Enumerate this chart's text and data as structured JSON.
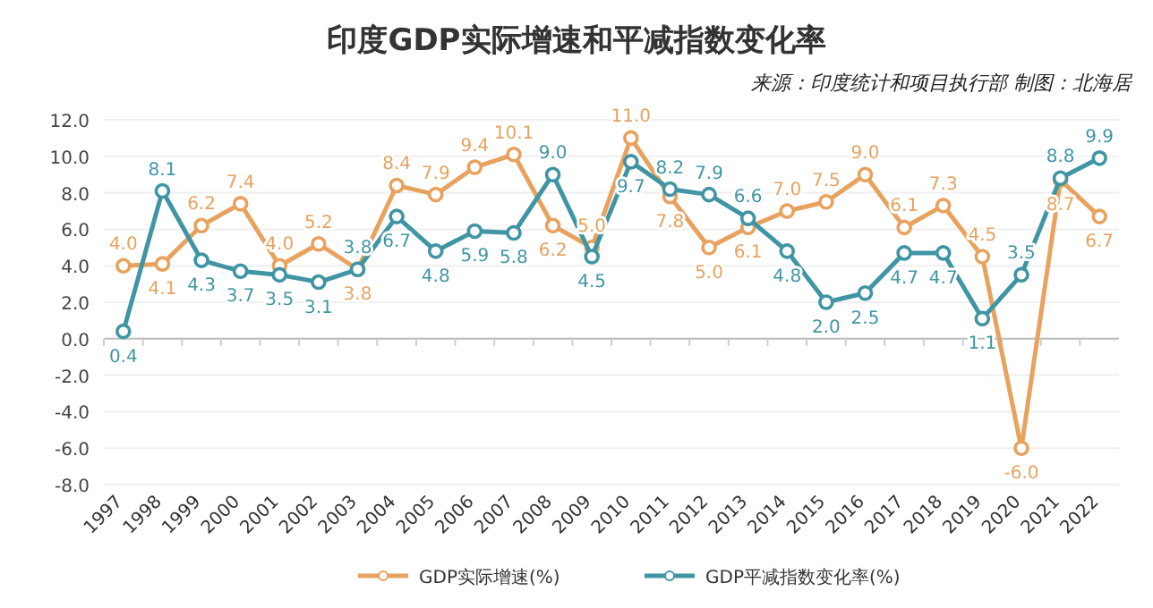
{
  "chart_data": {
    "type": "line",
    "title": "印度GDP实际增速和平减指数变化率",
    "annotations": [
      "来源：印度统计和项目执行部  制图：北海居"
    ],
    "categories": [
      "1997",
      "1998",
      "1999",
      "2000",
      "2001",
      "2002",
      "2003",
      "2004",
      "2005",
      "2006",
      "2007",
      "2008",
      "2009",
      "2010",
      "2011",
      "2012",
      "2013",
      "2014",
      "2015",
      "2016",
      "2017",
      "2018",
      "2019",
      "2020",
      "2021",
      "2022"
    ],
    "series": [
      {
        "name": "GDP实际增速(%)",
        "color": "#e8a25e",
        "values": [
          4.0,
          4.1,
          6.2,
          7.4,
          4.0,
          5.2,
          3.8,
          8.4,
          7.9,
          9.4,
          10.1,
          6.2,
          5.0,
          11.0,
          7.8,
          5.0,
          6.1,
          7.0,
          7.5,
          9.0,
          6.1,
          7.3,
          4.5,
          -6.0,
          8.7,
          6.7
        ],
        "value_labels": [
          "4.0",
          "4.1",
          "6.2",
          "7.4",
          "4.0",
          "5.2",
          "3.8",
          "8.4",
          "7.9",
          "9.4",
          "10.1",
          "6.2",
          "5.0",
          "11.0",
          "7.8",
          "5.0",
          "6.1",
          "7.0",
          "7.5",
          "9.0",
          "6.1",
          "7.3",
          "4.5",
          "-6.0",
          "8.7",
          "6.7"
        ]
      },
      {
        "name": "GDP平减指数变化率(%)",
        "color": "#3f95a3",
        "values": [
          0.4,
          8.1,
          4.3,
          3.7,
          3.5,
          3.1,
          3.8,
          6.7,
          4.8,
          5.9,
          5.8,
          9.0,
          4.5,
          9.7,
          8.2,
          7.9,
          6.6,
          4.8,
          2.0,
          2.5,
          4.7,
          4.7,
          1.1,
          3.5,
          8.8,
          9.9
        ],
        "value_labels": [
          "0.4",
          "8.1",
          "4.3",
          "3.7",
          "3.5",
          "3.1",
          "3.8",
          "6.7",
          "4.8",
          "5.9",
          "5.8",
          "9.0",
          "4.5",
          "9.7",
          "8.2",
          "7.9",
          "6.6",
          "4.8",
          "2.0",
          "2.5",
          "4.7",
          "4.7",
          "1.1",
          "3.5",
          "8.8",
          "9.9"
        ]
      }
    ],
    "ylim": [
      -8,
      12
    ],
    "yticks": [
      {
        "value": -8,
        "label": "-8.0"
      },
      {
        "value": -6,
        "label": "-6.0"
      },
      {
        "value": -4,
        "label": "-4.0"
      },
      {
        "value": -2,
        "label": "-2.0"
      },
      {
        "value": 0,
        "label": "0.0"
      },
      {
        "value": 2,
        "label": "2.0"
      },
      {
        "value": 4,
        "label": "4.0"
      },
      {
        "value": 6,
        "label": "6.0"
      },
      {
        "value": 8,
        "label": "8.0"
      },
      {
        "value": 10,
        "label": "10.0"
      },
      {
        "value": 12,
        "label": "12.0"
      }
    ],
    "marker": "circle",
    "legend": "bottom",
    "grid": "y"
  }
}
